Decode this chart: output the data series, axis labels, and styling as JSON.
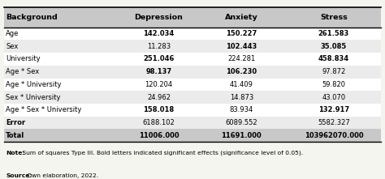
{
  "headers": [
    "Background",
    "Depression",
    "Anxiety",
    "Stress"
  ],
  "rows": [
    {
      "label": "Age",
      "depression": "142.034",
      "depression_bold": true,
      "anxiety": "150.227",
      "anxiety_bold": true,
      "stress": "261.583",
      "stress_bold": true
    },
    {
      "label": "Sex",
      "depression": "11.283",
      "depression_bold": false,
      "anxiety": "102.443",
      "anxiety_bold": true,
      "stress": "35.085",
      "stress_bold": true
    },
    {
      "label": "University",
      "depression": "251.046",
      "depression_bold": true,
      "anxiety": "224.281",
      "anxiety_bold": false,
      "stress": "458.834",
      "stress_bold": true
    },
    {
      "label": "Age * Sex",
      "depression": "98.137",
      "depression_bold": true,
      "anxiety": "106.230",
      "anxiety_bold": true,
      "stress": "97.872",
      "stress_bold": false
    },
    {
      "label": "Age * University",
      "depression": "120.204",
      "depression_bold": false,
      "anxiety": "41.409",
      "anxiety_bold": false,
      "stress": "59.820",
      "stress_bold": false
    },
    {
      "label": "Sex * University",
      "depression": "24.962",
      "depression_bold": false,
      "anxiety": "14.873",
      "anxiety_bold": false,
      "stress": "43.070",
      "stress_bold": false
    },
    {
      "label": "Age * Sex * University",
      "depression": "158.018",
      "depression_bold": true,
      "anxiety": "83.934",
      "anxiety_bold": false,
      "stress": "132.917",
      "stress_bold": true
    },
    {
      "label": "Error",
      "depression": "6188.102",
      "depression_bold": false,
      "anxiety": "6089.552",
      "anxiety_bold": false,
      "stress": "5582.327",
      "stress_bold": false
    },
    {
      "label": "Total",
      "depression": "11006.000",
      "depression_bold": true,
      "anxiety": "11691.000",
      "anxiety_bold": true,
      "stress": "103962070.000",
      "stress_bold": true
    }
  ],
  "note": " Sum of squares Type III. Bold letters indicated significant effects (significance level of 0.05).",
  "note_bold": "Note:",
  "source": " Own elaboration, 2022.",
  "source_bold": "Source:",
  "header_bg": "#c8c8c8",
  "alt_row_bg": "#ebebeb",
  "white_row_bg": "#ffffff",
  "fig_bg": "#f5f5f0",
  "figsize": [
    4.74,
    2.21
  ],
  "dpi": 100
}
